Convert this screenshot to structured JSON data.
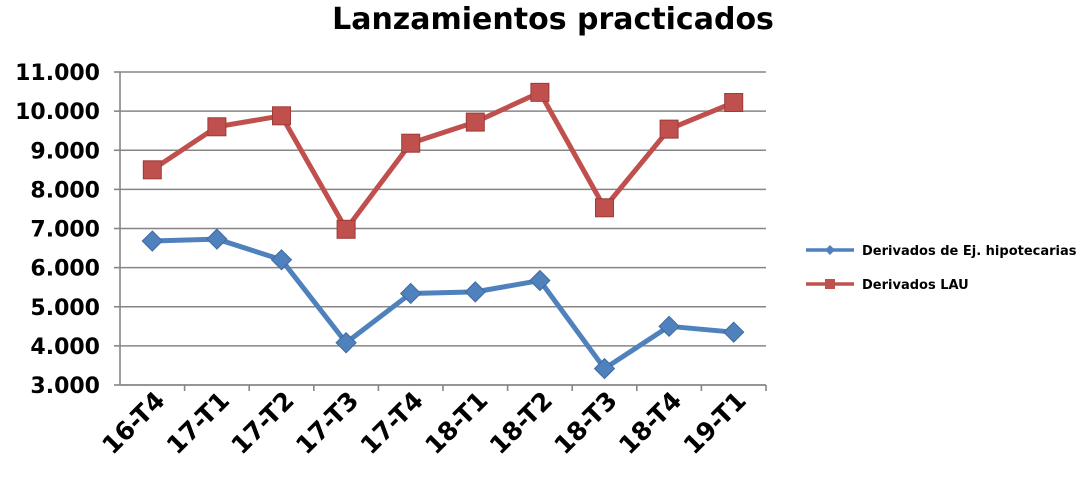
{
  "chart_data": {
    "type": "line",
    "title": "Lanzamientos practicados",
    "xlabel": "",
    "ylabel": "",
    "categories": [
      "16-T4",
      "17-T1",
      "17-T2",
      "17-T3",
      "17-T4",
      "18-T1",
      "18-T2",
      "18-T3",
      "18-T4",
      "19-T1"
    ],
    "ylim": [
      3000,
      11000
    ],
    "yticks": [
      3000,
      4000,
      5000,
      6000,
      7000,
      8000,
      9000,
      10000,
      11000
    ],
    "ytick_labels": [
      "3.000",
      "4.000",
      "5.000",
      "6.000",
      "7.000",
      "8.000",
      "9.000",
      "10.000",
      "11.000"
    ],
    "grid": true,
    "legend_position": "right",
    "series": [
      {
        "name": "Derivados de Ej. hipotecarias",
        "marker": "diamond",
        "color": "#4F81BD",
        "values": [
          6680,
          6730,
          6200,
          4080,
          5340,
          5380,
          5670,
          3420,
          4500,
          4350
        ]
      },
      {
        "name": "Derivados LAU",
        "marker": "square",
        "color": "#C0504D",
        "values": [
          8500,
          9600,
          9880,
          6980,
          9180,
          9720,
          10480,
          7530,
          9540,
          10220
        ]
      }
    ]
  }
}
